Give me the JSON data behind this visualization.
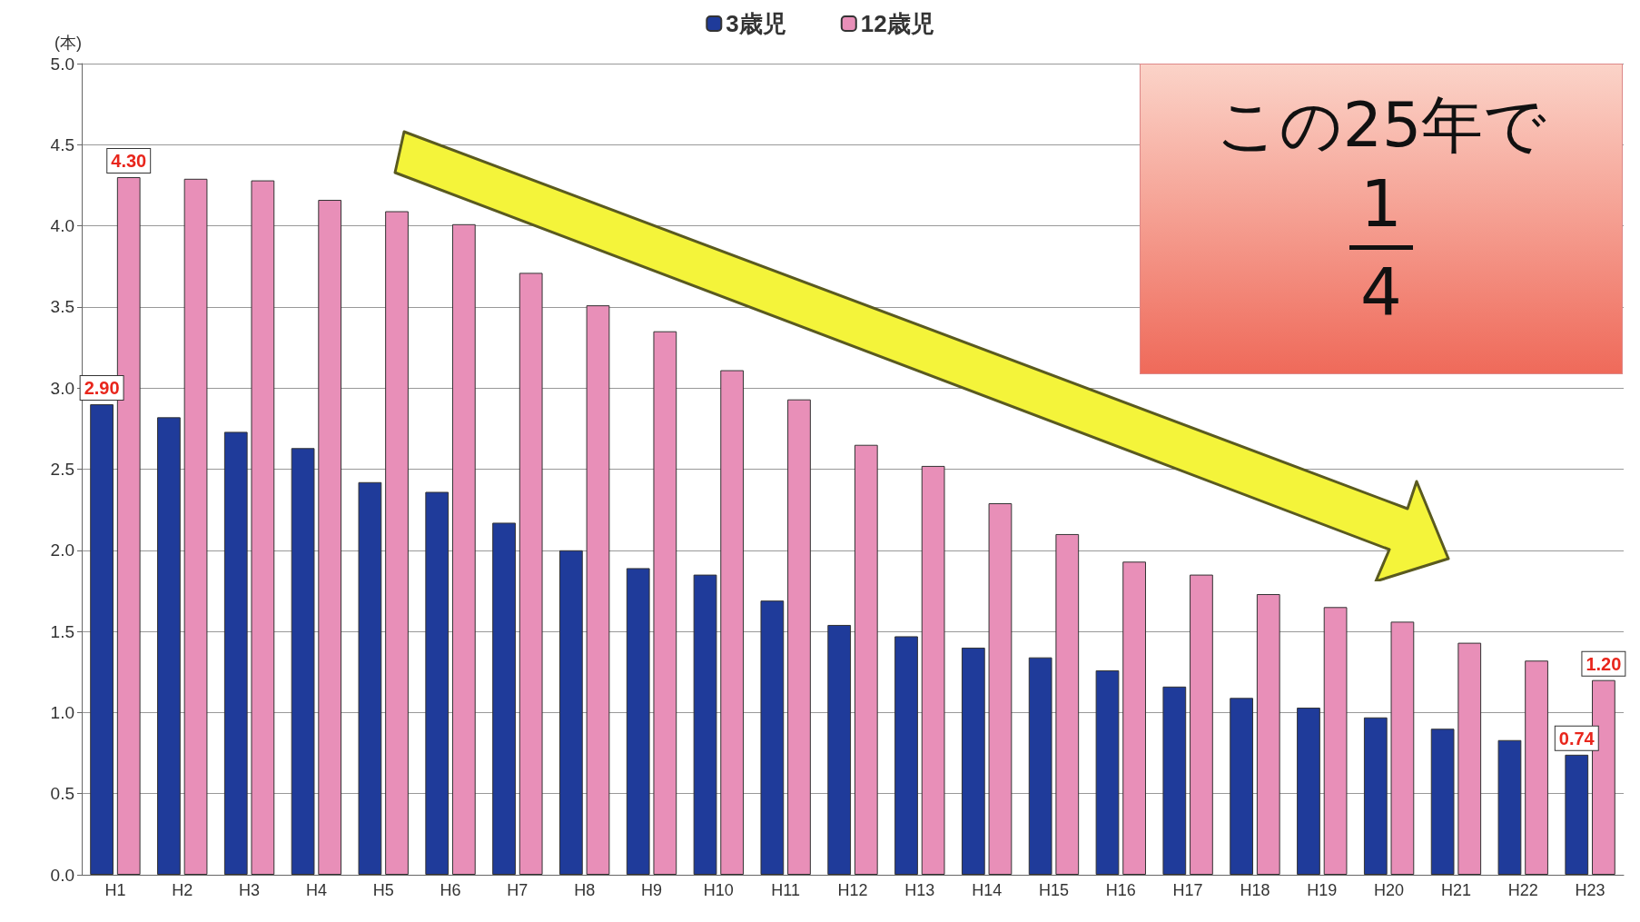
{
  "chart_data": {
    "type": "bar",
    "ylabel": "(本)",
    "categories": [
      "H1",
      "H2",
      "H3",
      "H4",
      "H5",
      "H6",
      "H7",
      "H8",
      "H9",
      "H10",
      "H11",
      "H12",
      "H13",
      "H14",
      "H15",
      "H16",
      "H17",
      "H18",
      "H19",
      "H20",
      "H21",
      "H22",
      "H23"
    ],
    "series": [
      {
        "name": "3歳児",
        "color": "#1f3b9a",
        "values": [
          2.9,
          2.82,
          2.73,
          2.63,
          2.42,
          2.36,
          2.17,
          2.0,
          1.89,
          1.85,
          1.69,
          1.54,
          1.47,
          1.4,
          1.34,
          1.26,
          1.16,
          1.09,
          1.03,
          0.97,
          0.9,
          0.83,
          0.74
        ],
        "value_labels": [
          "2.90",
          null,
          null,
          null,
          null,
          null,
          null,
          null,
          null,
          null,
          null,
          null,
          null,
          null,
          null,
          null,
          null,
          null,
          null,
          null,
          null,
          null,
          "0.74"
        ]
      },
      {
        "name": "12歳児",
        "color": "#e88fb8",
        "values": [
          4.3,
          4.29,
          4.28,
          4.16,
          4.09,
          4.01,
          3.71,
          3.51,
          3.35,
          3.11,
          2.93,
          2.65,
          2.52,
          2.29,
          2.1,
          1.93,
          1.85,
          1.73,
          1.65,
          1.56,
          1.43,
          1.32,
          1.2
        ],
        "value_labels": [
          "4.30",
          null,
          null,
          null,
          null,
          null,
          null,
          null,
          null,
          null,
          null,
          null,
          null,
          null,
          null,
          null,
          null,
          null,
          null,
          null,
          null,
          null,
          "1.20"
        ]
      }
    ],
    "ylim": [
      0,
      5
    ],
    "yticks": [
      {
        "value": 0,
        "label": "0.0"
      },
      {
        "value": 0.5,
        "label": "0.5"
      },
      {
        "value": 1,
        "label": "1.0"
      },
      {
        "value": 1.5,
        "label": "1.5"
      },
      {
        "value": 2,
        "label": "2.0"
      },
      {
        "value": 2.5,
        "label": "2.5"
      },
      {
        "value": 3,
        "label": "3.0"
      },
      {
        "value": 3.5,
        "label": "3.5"
      },
      {
        "value": 4,
        "label": "4.0"
      },
      {
        "value": 4.5,
        "label": "4.5"
      },
      {
        "value": 5,
        "label": "5.0"
      }
    ],
    "grid": "y",
    "legend": "top",
    "annotations": [
      "この25年で",
      "1",
      "4"
    ]
  }
}
